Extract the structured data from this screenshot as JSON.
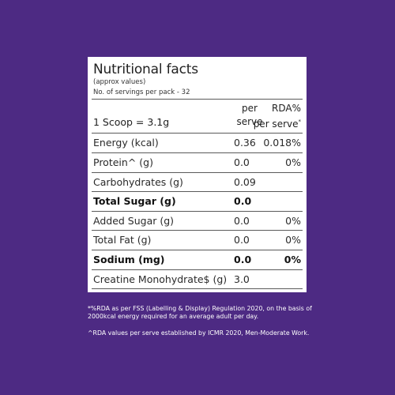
{
  "panel": {
    "title": "Nutritional facts",
    "subtitle": "(approx values)",
    "servings": "No. of servings per pack - 32"
  },
  "header": {
    "serving_size": "1 Scoop = 3.1g",
    "col_per_line1": "per",
    "col_per_line2": "serve",
    "col_rda_line1": "RDA%",
    "col_rda_line2": "per serve",
    "col_rda_mark": "*"
  },
  "rows": [
    {
      "label": "Energy (kcal)",
      "value": "0.36",
      "rda": "0.018%"
    },
    {
      "label": "Protein^ (g)",
      "value": "0.0",
      "rda": "0%"
    },
    {
      "label": "Carbohydrates (g)",
      "value": "0.09",
      "rda": ""
    },
    {
      "label": "Total Sugar (g)",
      "value": "0.0",
      "rda": ""
    },
    {
      "label": "Added Sugar (g)",
      "value": "0.0",
      "rda": "0%"
    },
    {
      "label": "Total Fat (g)",
      "value": "0.0",
      "rda": "0%"
    },
    {
      "label": "Sodium (mg)",
      "value": "0.0",
      "rda": "0%"
    },
    {
      "label": "Creatine Monohydrate$ (g)",
      "value": "3.0",
      "rda": ""
    }
  ],
  "footnotes": {
    "note1_line1": "*%RDA as per FSS (Labelling & Display) Regulation 2020, on the basis of",
    "note1_line2": "2000kcal energy required for an average adult per day.",
    "note2": "^RDA values per serve established by ICMR 2020, Men-Moderate Work."
  },
  "colors": {
    "background": "#4d2a83",
    "panel": "#ffffff",
    "text": "#1f1f1f"
  }
}
